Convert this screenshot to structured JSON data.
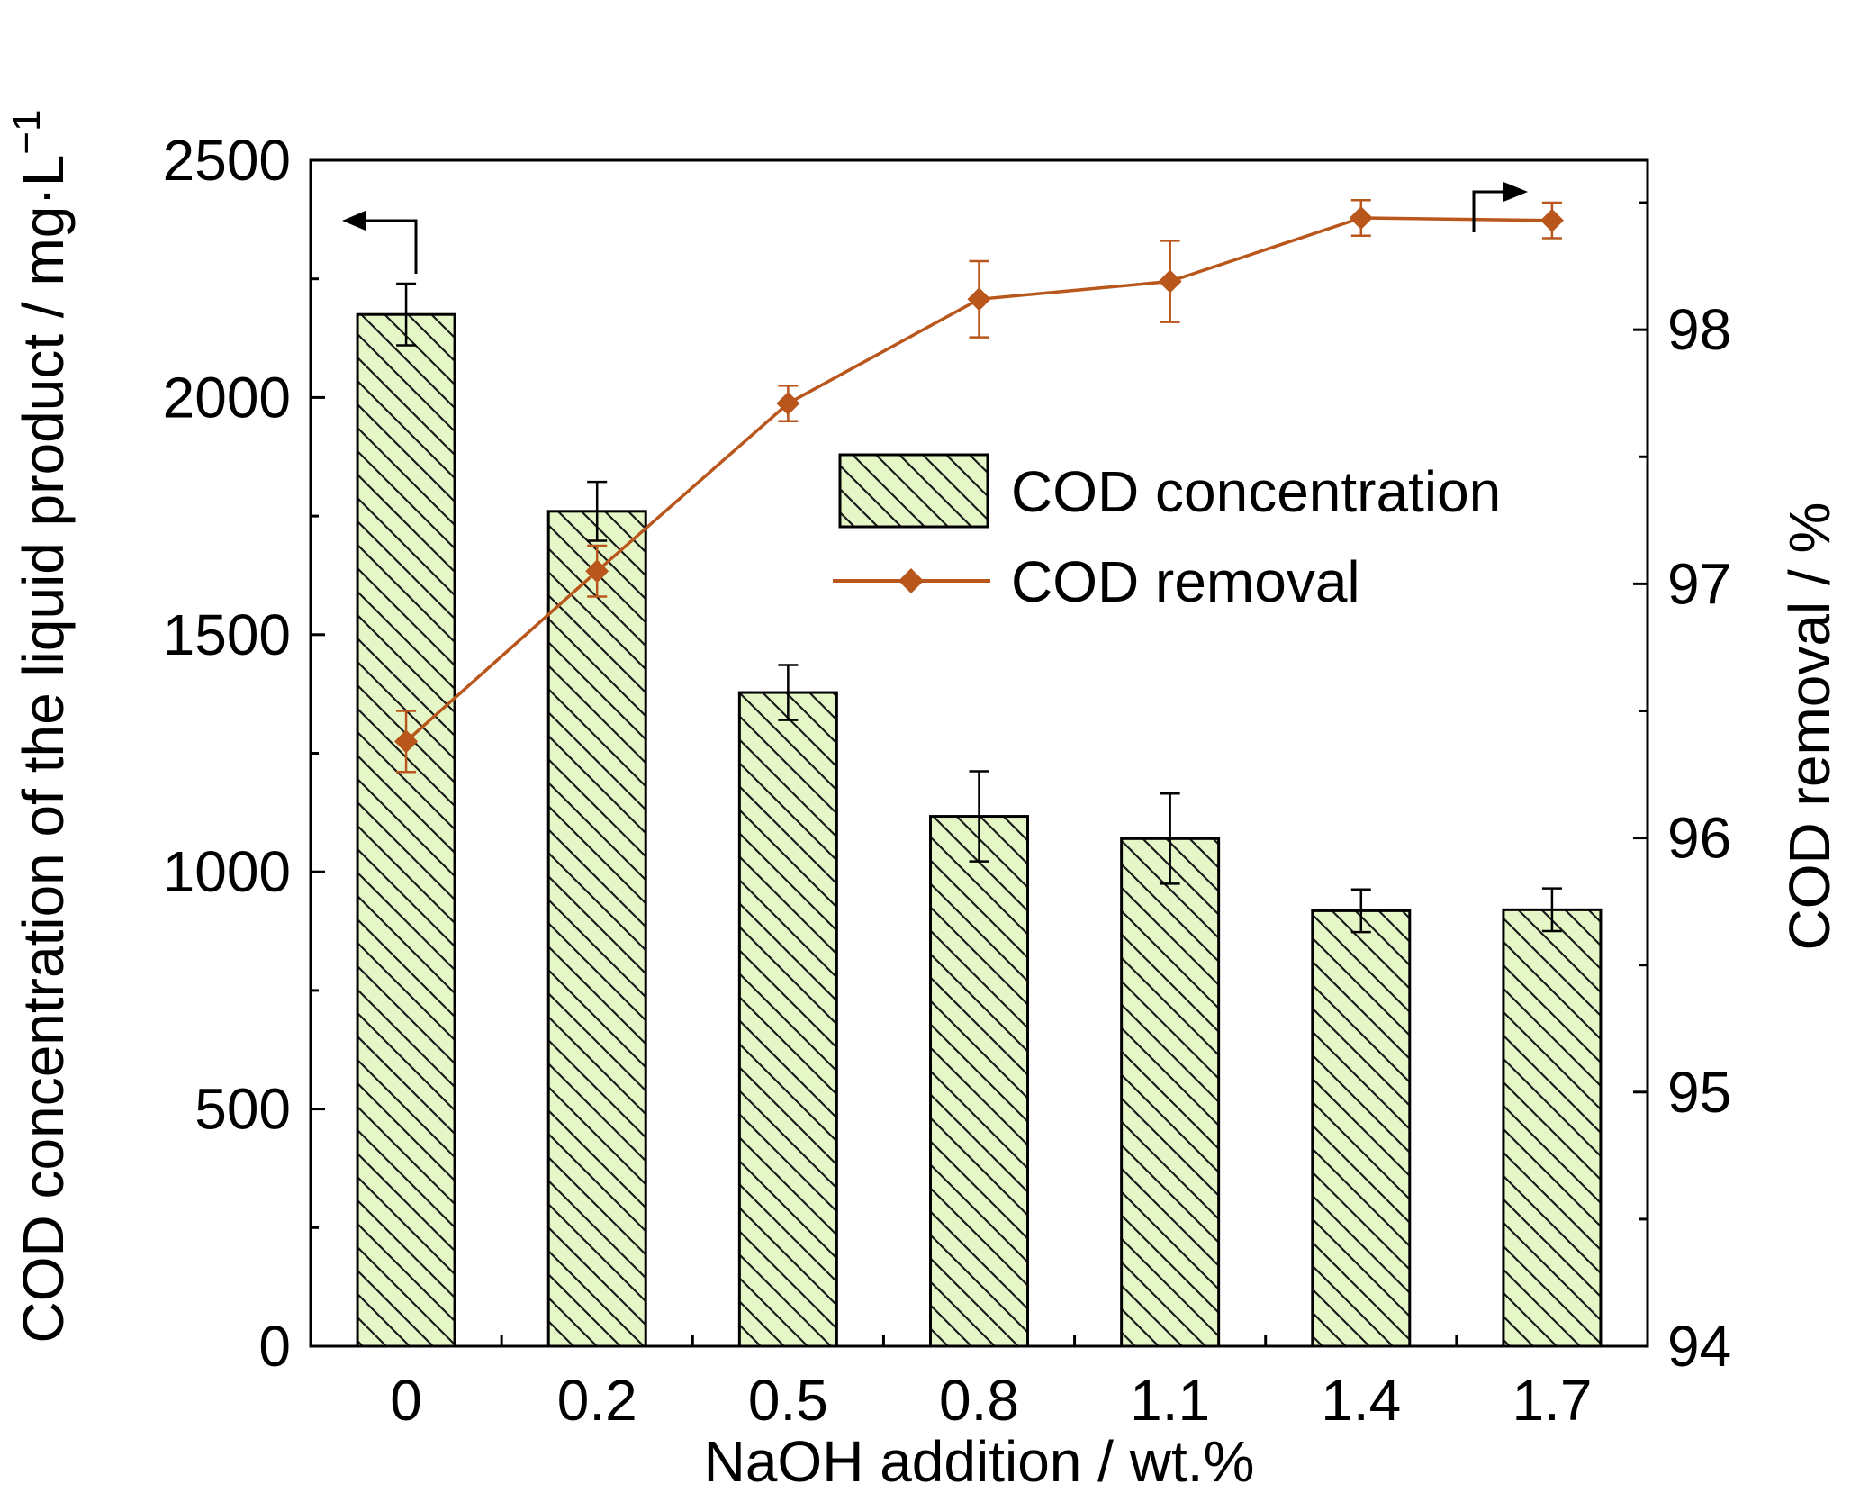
{
  "chart_data": {
    "type": "bar+line",
    "categories": [
      "0",
      "0.2",
      "0.5",
      "0.8",
      "1.1",
      "1.4",
      "1.7"
    ],
    "series": [
      {
        "name": "COD concentration",
        "kind": "bar",
        "axis": "left",
        "values": [
          2175,
          1760,
          1378,
          1117,
          1070,
          918,
          920
        ],
        "errors": [
          65,
          62,
          58,
          95,
          95,
          45,
          45
        ],
        "fill": "#e6f7c7",
        "hatch_color": "#1a1a1a"
      },
      {
        "name": "COD removal",
        "kind": "line",
        "axis": "right",
        "values": [
          96.38,
          97.05,
          97.71,
          98.12,
          98.19,
          98.44,
          98.43
        ],
        "errors": [
          0.12,
          0.1,
          0.07,
          0.15,
          0.16,
          0.07,
          0.07
        ],
        "color": "#b8561c"
      }
    ],
    "xlabel": "NaOH addition / wt.%",
    "ylabel_left": "COD concentration of the liquid product / mg·L",
    "ylabel_left_superscript": "−1",
    "ylabel_right": "COD removal / %",
    "ylim_left": [
      0,
      2500
    ],
    "ylim_right": [
      94,
      98.6667
    ],
    "yticks_left": [
      0,
      500,
      1000,
      1500,
      2000,
      2500
    ],
    "yticks_right": [
      94,
      95,
      96,
      97,
      98
    ],
    "legend": {
      "position": "upper-right",
      "entries": [
        "COD concentration",
        "COD removal"
      ]
    },
    "grid": false
  }
}
